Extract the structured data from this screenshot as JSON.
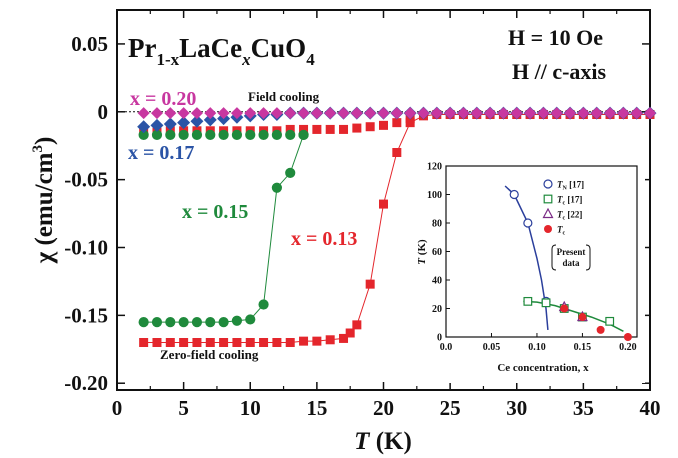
{
  "chart_data": [
    {
      "type": "scatter",
      "title": "Pr1-xLaCexCuO4",
      "title_parts": {
        "base": "Pr",
        "sub1": "1-x",
        "mid": "LaCe",
        "sub2": "x",
        "tail": "CuO",
        "sub3": "4"
      },
      "field_labels": [
        "H = 10 Oe",
        "H // c-axis"
      ],
      "xlabel": "T (K)",
      "ylabel": "χ (emu/cm3)",
      "xlim": [
        0,
        40
      ],
      "ylim": [
        -0.205,
        0.075
      ],
      "x_ticks": [
        0,
        5,
        10,
        15,
        20,
        25,
        30,
        35,
        40
      ],
      "y_ticks": [
        {
          "value": 0.05,
          "label": "0.05"
        },
        {
          "value": 0,
          "label": "0"
        },
        {
          "value": -0.05,
          "label": "-0.05"
        },
        {
          "value": -0.1,
          "label": "-0.10"
        },
        {
          "value": -0.15,
          "label": "-0.15"
        },
        {
          "value": -0.2,
          "label": "-0.20"
        }
      ],
      "annotations": {
        "fc": "Field cooling",
        "zfc": "Zero-field cooling"
      },
      "series": [
        {
          "name": "x = 0.20",
          "color": "#c837a0",
          "marker": "diamond",
          "x": [
            2,
            3,
            4,
            5,
            6,
            7,
            8,
            9,
            10,
            11,
            12,
            13,
            14,
            15,
            16,
            17,
            18,
            19,
            20,
            21,
            22,
            23,
            24,
            25,
            26,
            27,
            28,
            29,
            30,
            31,
            32,
            33,
            34,
            35,
            36,
            37,
            38,
            39,
            40
          ],
          "y": [
            -0.001,
            -0.001,
            -0.001,
            -0.001,
            -0.001,
            -0.001,
            -0.001,
            -0.001,
            -0.001,
            -0.001,
            -0.001,
            -0.001,
            -0.001,
            -0.001,
            -0.001,
            -0.001,
            -0.001,
            -0.001,
            -0.001,
            -0.001,
            -0.001,
            -0.001,
            -0.001,
            -0.001,
            -0.001,
            -0.001,
            -0.001,
            -0.001,
            -0.001,
            -0.001,
            -0.001,
            -0.001,
            -0.001,
            -0.001,
            -0.001,
            -0.001,
            -0.001,
            -0.001,
            -0.001
          ]
        },
        {
          "name": "x = 0.17",
          "color": "#2b54a6",
          "marker": "diamond",
          "x": [
            2,
            3,
            4,
            5,
            6,
            7,
            8,
            9,
            10,
            11,
            12,
            13,
            14,
            15,
            16,
            17,
            18,
            19,
            20,
            21,
            22,
            23,
            24,
            25,
            26,
            27,
            28,
            29,
            30,
            31,
            32,
            33,
            34,
            35,
            36,
            37,
            38,
            39,
            40
          ],
          "y": [
            -0.011,
            -0.01,
            -0.009,
            -0.008,
            -0.007,
            -0.006,
            -0.005,
            -0.004,
            -0.003,
            -0.002,
            -0.002,
            -0.001,
            -0.001,
            -0.001,
            -0.001,
            -0.001,
            -0.001,
            -0.001,
            -0.001,
            -0.001,
            -0.001,
            -0.001,
            -0.001,
            -0.001,
            -0.001,
            -0.001,
            -0.001,
            -0.001,
            -0.001,
            -0.001,
            -0.001,
            -0.001,
            -0.001,
            -0.001,
            -0.001,
            -0.001,
            -0.001,
            -0.001,
            -0.001
          ]
        },
        {
          "name": "x = 0.15",
          "color": "#1f8a3c",
          "marker": "circle",
          "x": [
            2,
            3,
            4,
            5,
            6,
            7,
            8,
            9,
            10,
            11,
            12,
            13,
            14
          ],
          "y": [
            -0.155,
            -0.155,
            -0.155,
            -0.155,
            -0.155,
            -0.155,
            -0.155,
            -0.154,
            -0.153,
            -0.142,
            -0.056,
            -0.045,
            -0.017
          ],
          "fc_x": [
            2,
            3,
            4,
            5,
            6,
            7,
            8,
            9,
            10,
            11,
            12,
            13,
            14
          ],
          "fc_y": [
            -0.017,
            -0.017,
            -0.017,
            -0.017,
            -0.017,
            -0.017,
            -0.017,
            -0.017,
            -0.017,
            -0.017,
            -0.017,
            -0.017,
            -0.017
          ]
        },
        {
          "name": "x = 0.13",
          "color": "#e4262c",
          "marker": "square",
          "x": [
            2,
            3,
            4,
            5,
            6,
            7,
            8,
            9,
            10,
            11,
            12,
            13,
            14,
            15,
            16,
            17,
            17.5,
            18,
            19,
            20,
            21,
            22,
            23,
            24,
            25,
            26,
            27,
            28,
            29,
            30,
            31,
            32,
            33,
            34,
            35,
            36,
            37,
            38,
            39,
            40
          ],
          "y": [
            -0.17,
            -0.17,
            -0.17,
            -0.17,
            -0.17,
            -0.17,
            -0.17,
            -0.17,
            -0.17,
            -0.17,
            -0.17,
            -0.17,
            -0.169,
            -0.169,
            -0.168,
            -0.167,
            -0.163,
            -0.157,
            -0.127,
            -0.068,
            -0.03,
            -0.008,
            -0.003,
            -0.002,
            -0.002,
            -0.002,
            -0.002,
            -0.002,
            -0.002,
            -0.002,
            -0.002,
            -0.002,
            -0.002,
            -0.002,
            -0.002,
            -0.002,
            -0.002,
            -0.002,
            -0.002,
            -0.002
          ],
          "fc_x": [
            2,
            3,
            4,
            5,
            6,
            7,
            8,
            9,
            10,
            11,
            12,
            13,
            14,
            15,
            16,
            17,
            18,
            19,
            20,
            21,
            22
          ],
          "fc_y": [
            -0.015,
            -0.015,
            -0.014,
            -0.014,
            -0.014,
            -0.014,
            -0.014,
            -0.014,
            -0.014,
            -0.014,
            -0.014,
            -0.013,
            -0.013,
            -0.013,
            -0.013,
            -0.013,
            -0.012,
            -0.011,
            -0.01,
            -0.008,
            -0.005
          ]
        }
      ]
    },
    {
      "type": "scatter",
      "xlabel": "Ce concentration, x",
      "ylabel": "T (K)",
      "xlim": [
        0.0,
        0.21
      ],
      "ylim": [
        0,
        120
      ],
      "x_ticks": [
        {
          "value": 0.0,
          "label": "0.0"
        },
        {
          "value": 0.05,
          "label": "0.05"
        },
        {
          "value": 0.1,
          "label": "0.10"
        },
        {
          "value": 0.15,
          "label": "0.15"
        },
        {
          "value": 0.2,
          "label": "0.20"
        }
      ],
      "y_ticks": [
        0,
        20,
        40,
        60,
        80,
        100,
        120
      ],
      "legend": [
        {
          "label": "TN [17]",
          "main": "T",
          "sub": "N",
          "ref": " [17]",
          "marker": "circle-open",
          "color": "#2b3f9c"
        },
        {
          "label": "Tc [17]",
          "main": "T",
          "sub": "c",
          "ref": " [17]",
          "marker": "square-open",
          "color": "#1f8a3c"
        },
        {
          "label": "Tc [22]",
          "main": "T",
          "sub": "c",
          "ref": " [22]",
          "marker": "triangle-open",
          "color": "#7a2a85"
        },
        {
          "label": "Tc",
          "main": "T",
          "sub": "c",
          "ref": "",
          "marker": "circle-filled",
          "color": "#e4262c"
        }
      ],
      "legend_note": [
        "Present",
        "data"
      ],
      "series": [
        {
          "name": "TN [17]",
          "marker": "circle-open",
          "color": "#2b3f9c",
          "x": [
            0.075,
            0.09,
            0.11
          ],
          "y": [
            100,
            80,
            25
          ]
        },
        {
          "name": "Tc [17]",
          "marker": "square-open",
          "color": "#1f8a3c",
          "x": [
            0.09,
            0.11,
            0.13,
            0.15,
            0.18
          ],
          "y": [
            25,
            24,
            20,
            14,
            11
          ]
        },
        {
          "name": "Tc [22]",
          "marker": "triangle-open",
          "color": "#7a2a85",
          "x": [
            0.13,
            0.15
          ],
          "y": [
            21,
            14
          ]
        },
        {
          "name": "Tc",
          "marker": "circle-filled",
          "color": "#e4262c",
          "x": [
            0.13,
            0.15,
            0.17,
            0.2
          ],
          "y": [
            20,
            14,
            5,
            0
          ]
        }
      ],
      "curves": [
        {
          "color": "#2b3f9c",
          "x": [
            0.065,
            0.075,
            0.09,
            0.1,
            0.105,
            0.11,
            0.112
          ],
          "y": [
            106,
            100,
            80,
            55,
            40,
            20,
            5
          ]
        },
        {
          "color": "#1f8a3c",
          "x": [
            0.085,
            0.1,
            0.12,
            0.14,
            0.16,
            0.18,
            0.195
          ],
          "y": [
            25,
            24.5,
            22,
            18,
            14,
            9,
            4
          ]
        }
      ]
    }
  ],
  "labels": {
    "x020": "x = 0.20",
    "x017": "x = 0.17",
    "x015": "x = 0.15",
    "x013": "x = 0.13"
  }
}
